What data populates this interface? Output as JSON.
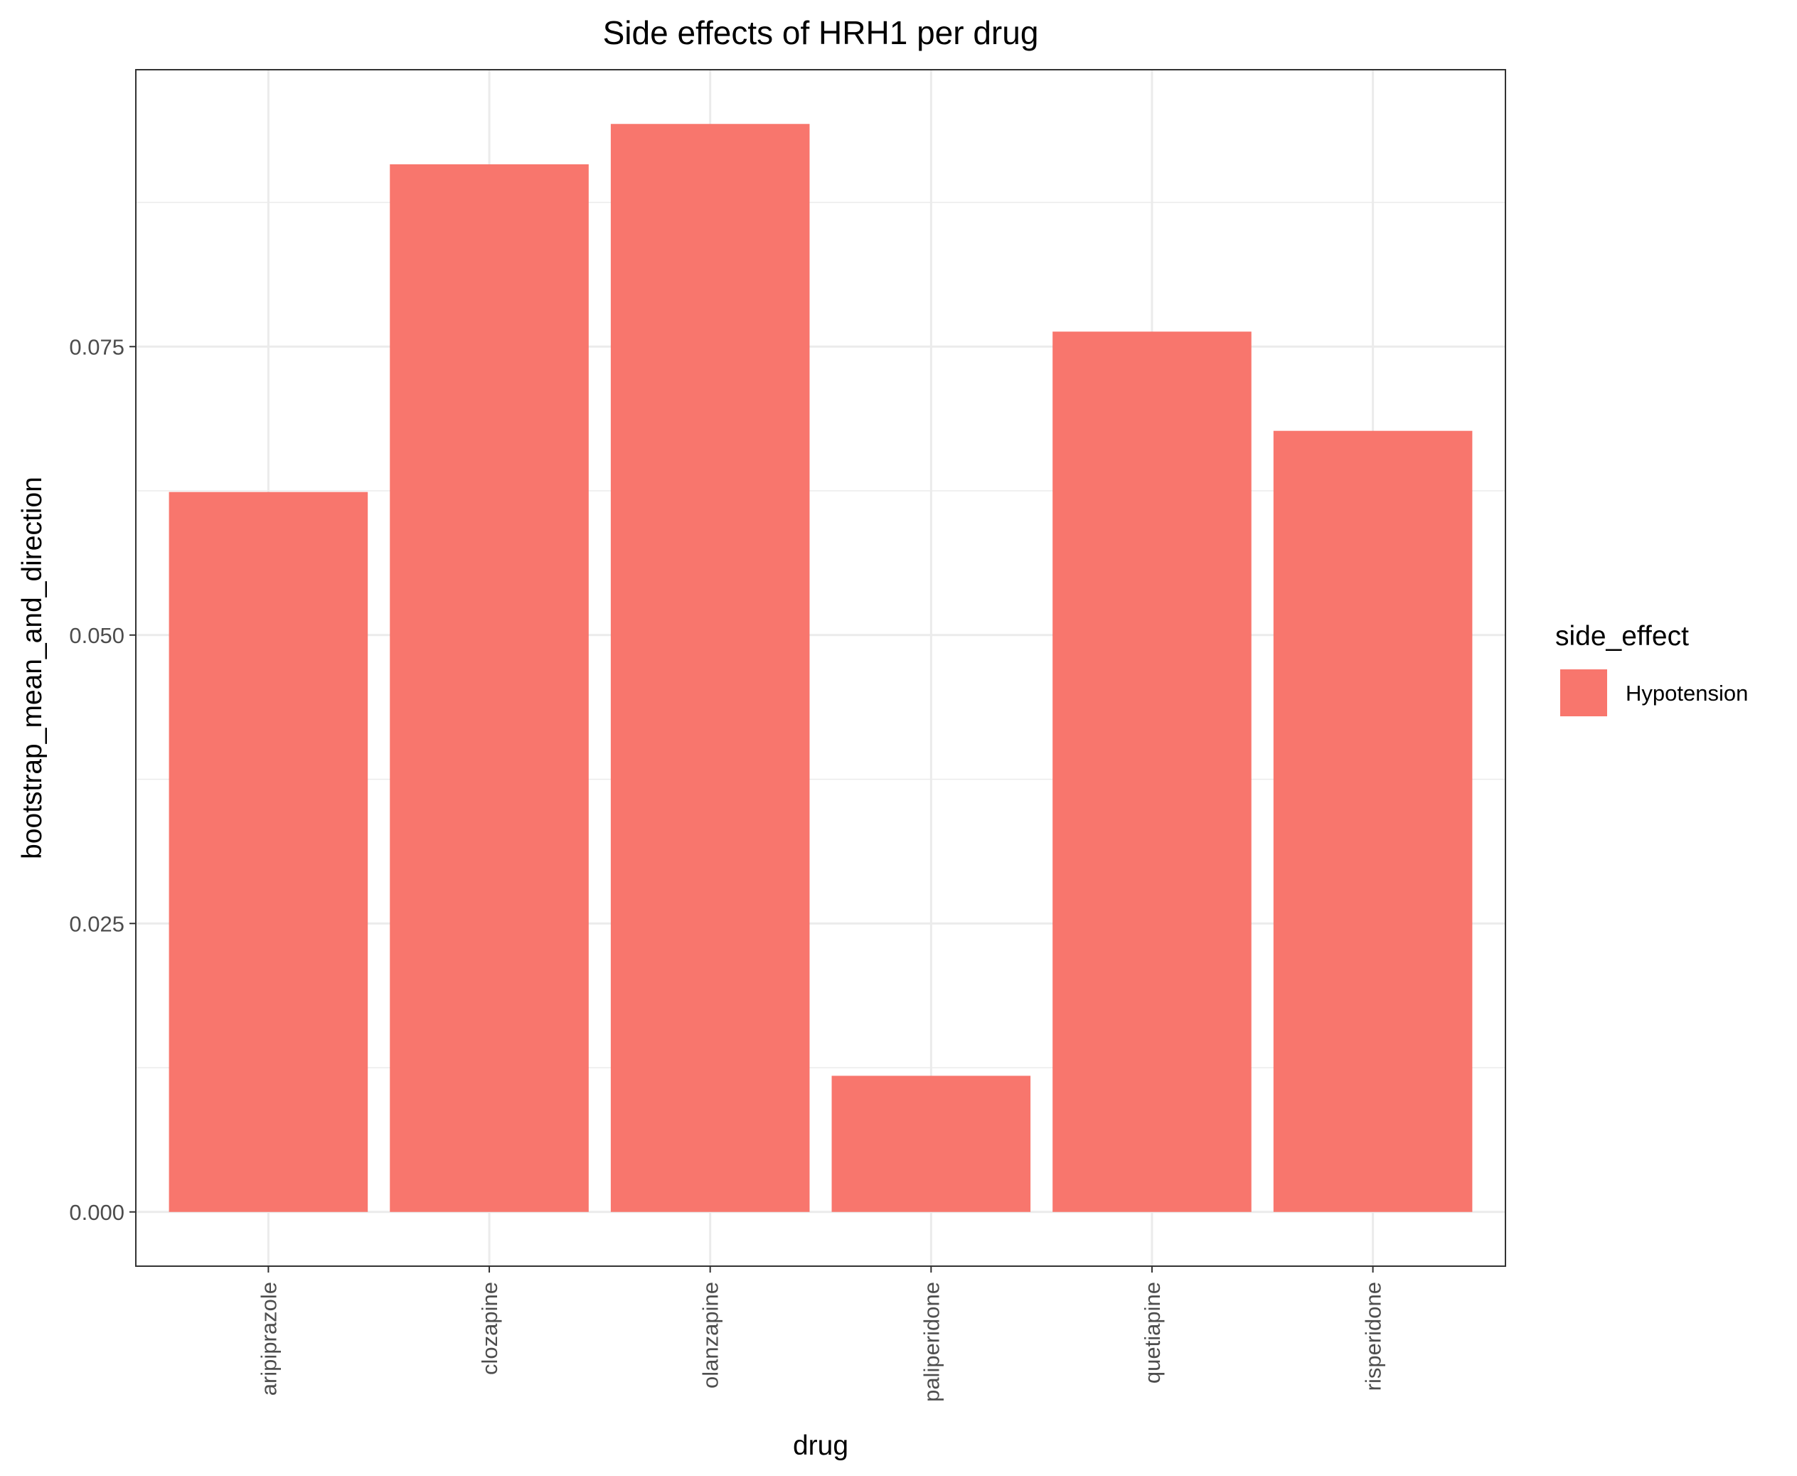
{
  "chart_data": {
    "type": "bar",
    "title": "Side effects of HRH1 per drug",
    "xlabel": "drug",
    "ylabel": "bootstrap_mean_and_direction",
    "categories": [
      "aripiprazole",
      "clozapine",
      "olanzapine",
      "paliperidone",
      "quetiapine",
      "risperidone"
    ],
    "series": [
      {
        "name": "Hypotension",
        "color": "#F8766D",
        "values": [
          0.0624,
          0.0908,
          0.0943,
          0.0118,
          0.0763,
          0.0677
        ]
      }
    ],
    "y_ticks": [
      0.0,
      0.025,
      0.05,
      0.075
    ],
    "y_tick_labels": [
      "0.000",
      "0.025",
      "0.050",
      "0.075"
    ],
    "ylim": [
      -0.0047,
      0.099
    ],
    "grid": true,
    "legend": {
      "title": "side_effect",
      "position": "right",
      "entries": [
        {
          "label": "Hypotension",
          "color": "#F8766D"
        }
      ]
    }
  }
}
